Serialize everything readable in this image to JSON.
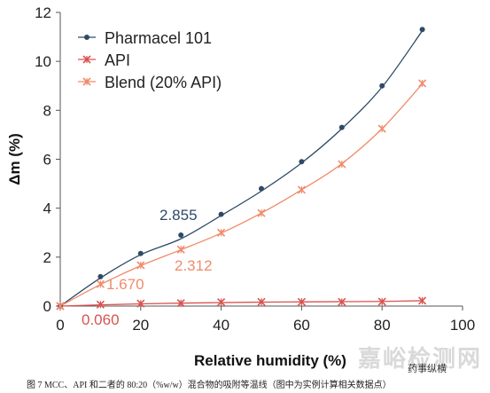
{
  "chart_data": {
    "type": "line",
    "title": "",
    "xlabel": "Relative humidity (%)",
    "ylabel": "Δm (%)",
    "xlim": [
      0,
      100
    ],
    "ylim": [
      0,
      12
    ],
    "xticks": [
      "0",
      "20",
      "40",
      "60",
      "80",
      "100"
    ],
    "yticks": [
      "0",
      "2",
      "4",
      "6",
      "8",
      "10",
      "12"
    ],
    "grid": false,
    "legend_position": "top-left",
    "series": [
      {
        "name": "Pharmacel 101",
        "color": "#2e4a66",
        "marker": "dot",
        "x": [
          0,
          10,
          20,
          30,
          40,
          50,
          60,
          70,
          80,
          90
        ],
        "y": [
          0.0,
          1.2,
          2.15,
          2.9,
          3.75,
          4.8,
          5.9,
          7.3,
          9.0,
          11.3
        ],
        "fit": [
          0.0,
          1.15,
          2.1,
          2.75,
          3.7,
          4.7,
          5.85,
          7.25,
          8.95,
          11.25
        ]
      },
      {
        "name": "API",
        "color": "#d9534f",
        "marker": "x",
        "x": [
          0,
          10,
          20,
          30,
          40,
          50,
          60,
          70,
          80,
          90
        ],
        "y": [
          0.0,
          0.06,
          0.1,
          0.12,
          0.16,
          0.17,
          0.17,
          0.17,
          0.18,
          0.22
        ],
        "fit": [
          0.0,
          0.05,
          0.09,
          0.12,
          0.14,
          0.16,
          0.17,
          0.18,
          0.19,
          0.22
        ]
      },
      {
        "name": "Blend (20% API)",
        "color": "#f08b6b",
        "marker": "x",
        "x": [
          0,
          10,
          20,
          30,
          40,
          50,
          60,
          70,
          80,
          90
        ],
        "y": [
          0.0,
          0.9,
          1.67,
          2.31,
          3.0,
          3.8,
          4.75,
          5.8,
          7.25,
          9.1
        ],
        "fit": [
          0.0,
          0.88,
          1.65,
          2.3,
          2.98,
          3.8,
          4.75,
          5.82,
          7.25,
          9.08
        ]
      }
    ],
    "annotations": [
      {
        "text": "2.855",
        "color": "#2e4a66"
      },
      {
        "text": "2.312",
        "color": "#f08b6b"
      },
      {
        "text": "1.670",
        "color": "#f08b6b"
      },
      {
        "text": "0.060",
        "color": "#d9534f"
      }
    ]
  },
  "caption": "图 7   MCC、API 和二者的 80:20（%w/w）混合物的吸附等温线（图中为实例计算相关数据点）",
  "watermark": "嘉峪检测网",
  "wechat_label": "药事纵横"
}
